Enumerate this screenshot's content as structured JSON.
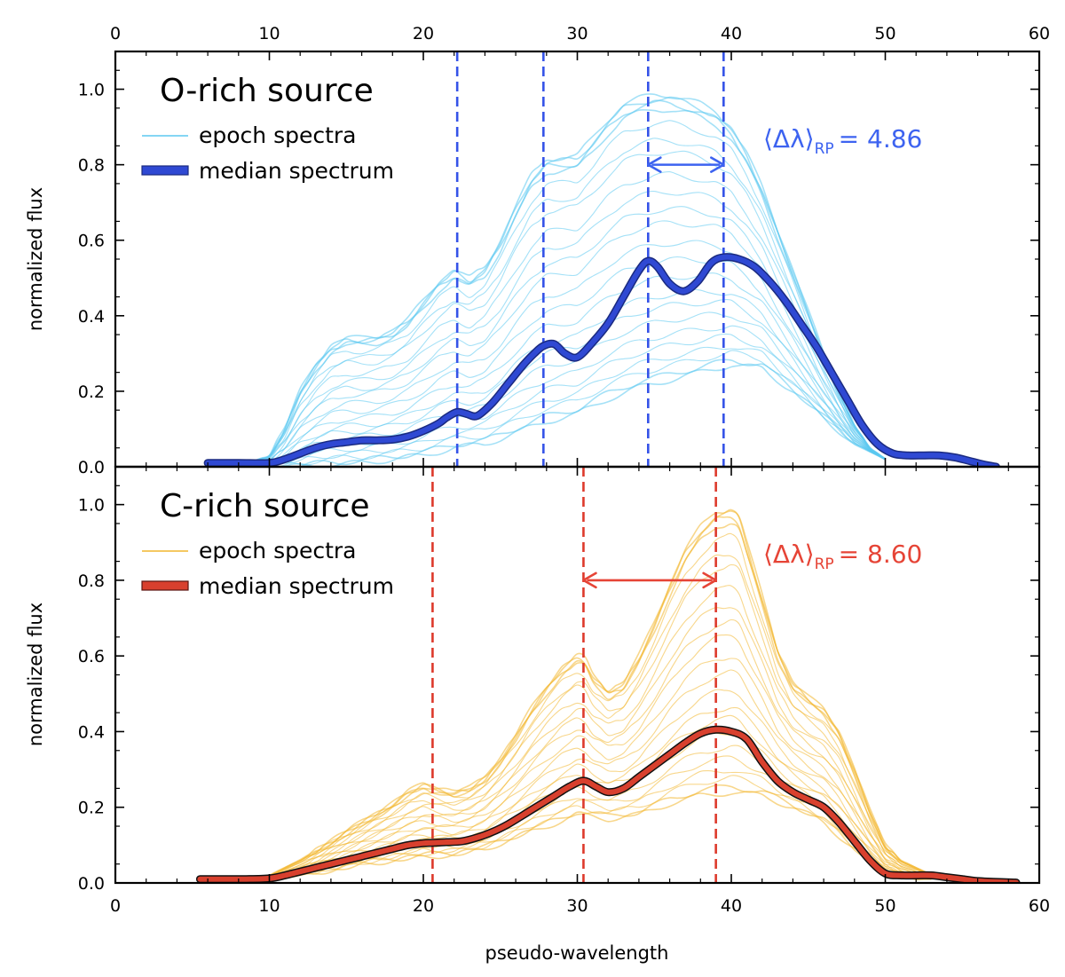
{
  "chart_data": [
    {
      "type": "line",
      "panel": "top",
      "title": "O-rich source",
      "xlabel": "",
      "ylabel": "normalized flux",
      "xlim": [
        0,
        60
      ],
      "ylim": [
        0,
        1.1
      ],
      "x_ticks": [
        0,
        10,
        20,
        30,
        40,
        50,
        60
      ],
      "y_ticks": [
        0.0,
        0.2,
        0.4,
        0.6,
        0.8,
        1.0
      ],
      "x_tick_labels": [
        "0",
        "10",
        "20",
        "30",
        "40",
        "50",
        "60"
      ],
      "y_tick_labels": [
        "0.0",
        "0.2",
        "0.4",
        "0.6",
        "0.8",
        "1.0"
      ],
      "colors": {
        "epoch": "#5bc8f0",
        "median": "#2f49d3",
        "vline": "#3553e8",
        "annotation": "#3d63f0"
      },
      "legend": {
        "location": "upper-left",
        "entries": [
          "epoch spectra",
          "median spectrum"
        ]
      },
      "annotation_label": "⟨Δλ⟩",
      "annotation_sub": "RP",
      "annotation_value": "= 4.86",
      "annotation": {
        "value": 4.86,
        "arrow_from_x": 34.6,
        "arrow_to_x": 39.5,
        "arrow_y": 0.8
      },
      "vlines_x": [
        22.2,
        27.8,
        34.6,
        39.5
      ],
      "median": {
        "x": [
          6,
          8,
          10,
          11,
          12,
          13,
          14,
          15,
          16,
          17,
          18,
          19,
          20,
          21,
          21.5,
          22.2,
          22.8,
          23.5,
          24.5,
          25.5,
          26.5,
          27.2,
          27.8,
          28.5,
          29.2,
          30,
          31,
          32,
          33,
          34,
          34.6,
          35.2,
          36,
          36.9,
          37.8,
          38.7,
          39.5,
          40.5,
          41.5,
          42.5,
          43.5,
          44.5,
          45.5,
          46.5,
          47.5,
          48.5,
          49.5,
          50.5,
          51.5,
          52.5,
          53.5,
          54.5,
          55.5,
          56.5,
          57.2
        ],
        "y": [
          0.01,
          0.01,
          0.01,
          0.02,
          0.035,
          0.05,
          0.06,
          0.065,
          0.07,
          0.07,
          0.072,
          0.08,
          0.095,
          0.115,
          0.13,
          0.145,
          0.14,
          0.135,
          0.17,
          0.22,
          0.27,
          0.3,
          0.32,
          0.325,
          0.3,
          0.29,
          0.33,
          0.38,
          0.45,
          0.52,
          0.545,
          0.53,
          0.485,
          0.465,
          0.49,
          0.54,
          0.555,
          0.55,
          0.53,
          0.49,
          0.44,
          0.38,
          0.32,
          0.25,
          0.18,
          0.11,
          0.06,
          0.035,
          0.03,
          0.03,
          0.03,
          0.025,
          0.015,
          0.005,
          0.0
        ]
      },
      "epochs": {
        "upper_envelope_x": [
          8,
          10,
          11,
          12,
          13,
          14,
          15,
          16,
          17,
          18,
          19,
          20,
          21,
          22,
          23,
          24,
          25,
          26,
          27,
          28,
          29,
          30,
          31,
          32,
          33,
          34,
          35,
          36,
          37,
          38,
          39,
          40,
          41,
          42,
          43,
          44,
          45,
          46,
          47,
          48,
          49,
          50
        ],
        "upper_envelope_y": [
          0.0,
          0.03,
          0.1,
          0.2,
          0.27,
          0.32,
          0.34,
          0.34,
          0.345,
          0.36,
          0.39,
          0.44,
          0.49,
          0.52,
          0.5,
          0.53,
          0.6,
          0.69,
          0.77,
          0.815,
          0.82,
          0.825,
          0.87,
          0.92,
          0.96,
          0.975,
          0.985,
          0.985,
          0.975,
          0.96,
          0.94,
          0.9,
          0.83,
          0.74,
          0.63,
          0.52,
          0.41,
          0.3,
          0.2,
          0.11,
          0.05,
          0.02
        ],
        "lower_envelope_x": [
          8,
          10,
          12,
          14,
          16,
          18,
          20,
          22,
          24,
          26,
          28,
          30,
          32,
          34,
          36,
          38,
          40,
          42,
          44,
          46,
          48,
          50
        ],
        "lower_envelope_y": [
          0.0,
          0.0,
          0.0,
          0.005,
          0.01,
          0.02,
          0.03,
          0.05,
          0.06,
          0.09,
          0.12,
          0.14,
          0.18,
          0.21,
          0.23,
          0.25,
          0.27,
          0.26,
          0.2,
          0.13,
          0.06,
          0.02
        ]
      }
    },
    {
      "type": "line",
      "panel": "bottom",
      "title": "C-rich source",
      "xlabel": "pseudo-wavelength",
      "ylabel": "normalized flux",
      "xlim": [
        0,
        60
      ],
      "ylim": [
        0,
        1.1
      ],
      "x_ticks": [
        0,
        10,
        20,
        30,
        40,
        50,
        60
      ],
      "y_ticks": [
        0.0,
        0.2,
        0.4,
        0.6,
        0.8,
        1.0
      ],
      "x_tick_labels": [
        "0",
        "10",
        "20",
        "30",
        "40",
        "50",
        "60"
      ],
      "y_tick_labels": [
        "0.0",
        "0.2",
        "0.4",
        "0.6",
        "0.8",
        "1.0"
      ],
      "colors": {
        "epoch": "#f2b62e",
        "median": "#d8402e",
        "vline": "#dd3a2c",
        "annotation": "#e64436"
      },
      "legend": {
        "location": "upper-left",
        "entries": [
          "epoch spectra",
          "median spectrum"
        ]
      },
      "annotation_label": "⟨Δλ⟩",
      "annotation_sub": "RP",
      "annotation_value": "= 8.60",
      "annotation": {
        "value": 8.6,
        "arrow_from_x": 30.4,
        "arrow_to_x": 39.0,
        "arrow_y": 0.8
      },
      "vlines_x": [
        20.6,
        30.4,
        39.0
      ],
      "median": {
        "x": [
          5.5,
          7,
          8.5,
          10,
          11,
          12,
          13,
          14,
          15,
          16,
          17,
          18,
          19,
          20,
          20.6,
          21.5,
          22.5,
          23.5,
          24.5,
          25.5,
          26.5,
          27.5,
          28.5,
          29.5,
          30.4,
          31.2,
          32,
          33,
          34,
          35,
          36,
          37,
          38,
          39,
          40,
          41,
          42,
          43,
          44,
          45,
          46,
          47,
          48,
          49,
          50,
          51,
          52,
          53,
          54,
          55,
          56,
          57,
          58.5
        ],
        "y": [
          0.01,
          0.01,
          0.01,
          0.012,
          0.02,
          0.03,
          0.04,
          0.05,
          0.06,
          0.07,
          0.08,
          0.09,
          0.1,
          0.105,
          0.106,
          0.108,
          0.11,
          0.12,
          0.135,
          0.155,
          0.18,
          0.205,
          0.23,
          0.255,
          0.27,
          0.255,
          0.24,
          0.25,
          0.28,
          0.31,
          0.34,
          0.37,
          0.395,
          0.405,
          0.4,
          0.38,
          0.32,
          0.27,
          0.24,
          0.22,
          0.2,
          0.16,
          0.11,
          0.06,
          0.025,
          0.02,
          0.02,
          0.02,
          0.015,
          0.01,
          0.005,
          0.003,
          0.001
        ]
      },
      "epochs": {
        "upper_envelope_x": [
          8,
          10,
          12,
          14,
          16,
          18,
          19,
          20,
          21,
          22,
          23,
          24,
          25,
          26,
          27,
          28,
          29,
          30,
          30.5,
          31,
          32,
          33,
          34,
          35,
          36,
          37,
          38,
          39,
          40,
          40.5,
          41,
          42,
          43,
          44,
          45,
          46,
          47,
          48,
          49,
          50,
          51,
          52,
          53
        ],
        "upper_envelope_y": [
          0.0,
          0.02,
          0.06,
          0.11,
          0.16,
          0.21,
          0.24,
          0.26,
          0.25,
          0.24,
          0.25,
          0.28,
          0.33,
          0.39,
          0.46,
          0.52,
          0.57,
          0.6,
          0.59,
          0.55,
          0.51,
          0.53,
          0.6,
          0.69,
          0.79,
          0.88,
          0.94,
          0.98,
          0.99,
          0.97,
          0.9,
          0.76,
          0.62,
          0.53,
          0.49,
          0.46,
          0.4,
          0.3,
          0.19,
          0.1,
          0.06,
          0.04,
          0.02
        ],
        "lower_envelope_x": [
          8,
          10,
          12,
          14,
          16,
          18,
          20,
          22,
          24,
          26,
          28,
          30,
          32,
          34,
          36,
          38,
          40,
          42,
          44,
          46,
          48,
          50,
          52
        ],
        "lower_envelope_y": [
          0.0,
          0.005,
          0.02,
          0.035,
          0.05,
          0.06,
          0.07,
          0.075,
          0.09,
          0.12,
          0.15,
          0.18,
          0.17,
          0.18,
          0.21,
          0.23,
          0.24,
          0.23,
          0.2,
          0.16,
          0.09,
          0.03,
          0.01
        ]
      }
    }
  ]
}
